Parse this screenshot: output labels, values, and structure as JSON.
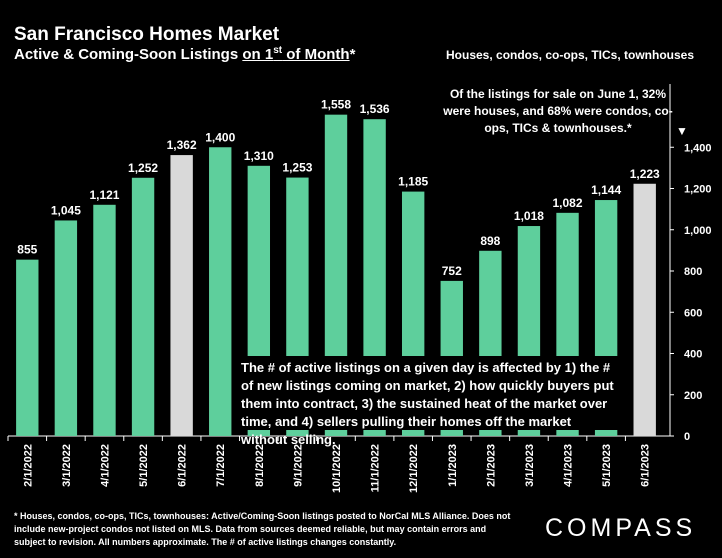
{
  "header": {
    "title": "San Francisco Homes Market",
    "subtitle_prefix": "Active & Coming-Soon Listings ",
    "subtitle_underlined_a": "on 1",
    "subtitle_sup": "st",
    "subtitle_underlined_b": " of Month",
    "subtitle_suffix": "*",
    "category_note": "Houses, condos, co-ops, TICs, townhouses"
  },
  "annotations": {
    "june_note": "Of the listings for sale on June 1, 32% were houses, and 68% were condos, co-ops, TICs & townhouses.*",
    "june_arrow": "▼",
    "explanation": "The # of active listings on a given day is affected by 1) the # of new listings coming on market, 2) how quickly buyers put them into contract, 3) the sustained heat of the market over time, and 4) sellers pulling their homes off the market without selling."
  },
  "footnote": "* Houses, condos, co-ops, TICs, townhouses: Active/Coming-Soon listings posted to NorCal MLS Alliance. Does not include new-project condos not listed on MLS. Data from sources deemed reliable, but may contain errors and subject to revision. All numbers approximate. The # of active listings changes constantly.",
  "brand": {
    "logo_text": "COMPASS"
  },
  "colors": {
    "bar": "#5ecf9c",
    "highlight": "#d9d9d9",
    "background": "#000000",
    "grid": "#ffffff"
  },
  "chart_data": {
    "type": "bar",
    "categories": [
      "2/1/2022",
      "3/1/2022",
      "4/1/2022",
      "5/1/2022",
      "6/1/2022",
      "7/1/2022",
      "8/1/2022",
      "9/1/2022",
      "10/1/2022",
      "11/1/2022",
      "12/1/2022",
      "1/1/2023",
      "2/1/2023",
      "3/1/2023",
      "4/1/2023",
      "5/1/2023",
      "6/1/2023"
    ],
    "values": [
      855,
      1045,
      1121,
      1252,
      1362,
      1400,
      1310,
      1253,
      1558,
      1536,
      1185,
      752,
      898,
      1018,
      1082,
      1144,
      1223
    ],
    "value_labels": [
      "855",
      "1,045",
      "1,121",
      "1,252",
      "1,362",
      "1,400",
      "1,310",
      "1,253",
      "1,558",
      "1,536",
      "1,185",
      "752",
      "898",
      "1,018",
      "1,082",
      "1,144",
      "1,223"
    ],
    "highlighted": [
      "6/1/2022",
      "6/1/2023"
    ],
    "y_ticks": [
      0,
      200,
      400,
      600,
      800,
      1000,
      1200,
      1400
    ],
    "y_tick_labels": [
      "0",
      "200",
      "400",
      "600",
      "800",
      "1,000",
      "1,200",
      "1,400"
    ],
    "ylim": [
      0,
      1600
    ],
    "y_axis_side": "right",
    "grid": false
  }
}
